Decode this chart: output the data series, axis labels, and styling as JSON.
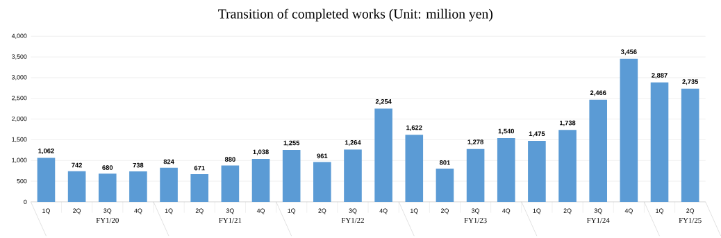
{
  "chart_data": {
    "type": "bar",
    "title": "Transition of completed works (Unit: million yen)",
    "categories": [
      "1Q",
      "2Q",
      "3Q",
      "4Q",
      "1Q",
      "2Q",
      "3Q",
      "4Q",
      "1Q",
      "2Q",
      "3Q",
      "4Q",
      "1Q",
      "2Q",
      "3Q",
      "4Q",
      "1Q",
      "2Q",
      "3Q",
      "4Q",
      "1Q",
      "2Q"
    ],
    "values": [
      1062,
      742,
      680,
      738,
      824,
      671,
      880,
      1038,
      1255,
      961,
      1264,
      2254,
      1622,
      801,
      1278,
      1540,
      1475,
      1738,
      2466,
      3456,
      2887,
      2735
    ],
    "value_labels": [
      "1,062",
      "742",
      "680",
      "738",
      "824",
      "671",
      "880",
      "1,038",
      "1,255",
      "961",
      "1,264",
      "2,254",
      "1,622",
      "801",
      "1,278",
      "1,540",
      "1,475",
      "1,738",
      "2,466",
      "3,456",
      "2,887",
      "2,735"
    ],
    "annotations": [
      "FY1/20",
      "FY1/21",
      "FY1/22",
      "FY1/23",
      "FY1/24",
      "FY1/25"
    ],
    "color": "#5b9bd5",
    "ylim": [
      0,
      4000
    ],
    "yticks": [
      0,
      500,
      {
        "value": 1000,
        "label": "1,000"
      },
      {
        "value": 1500,
        "label": "1,500"
      },
      {
        "value": 2000,
        "label": "2,000"
      },
      {
        "value": 2500,
        "label": "2,500"
      },
      {
        "value": 3000,
        "label": "3,000"
      },
      {
        "value": 3500,
        "label": "3,500"
      },
      {
        "value": 4000,
        "label": "4,000"
      }
    ],
    "grid": "y"
  }
}
